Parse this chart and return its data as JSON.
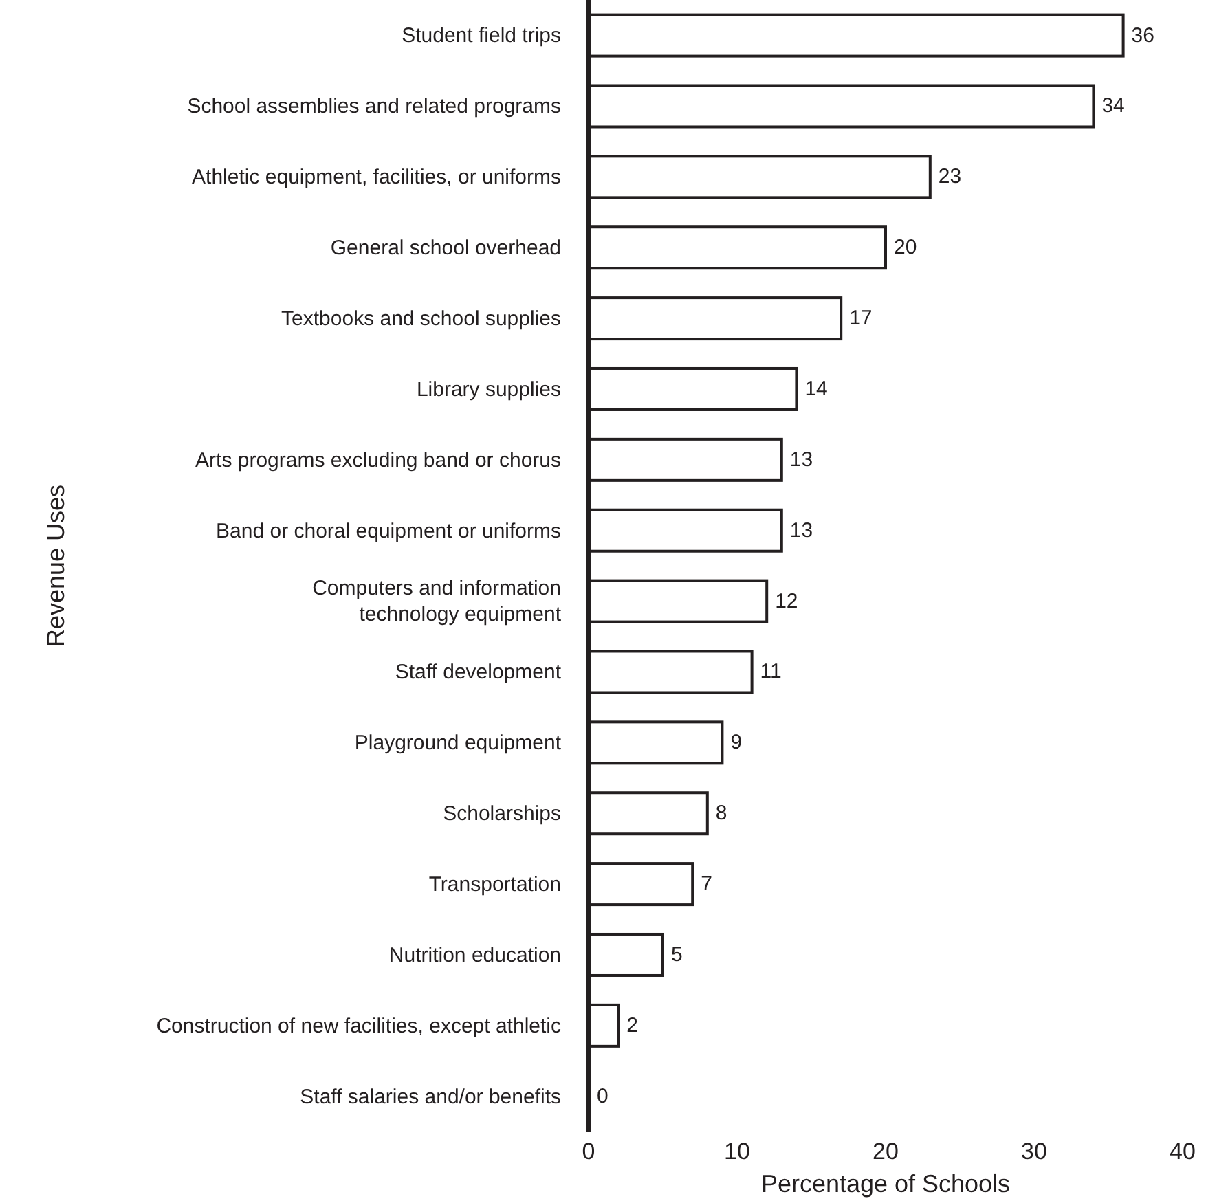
{
  "chart_data": {
    "type": "bar",
    "orientation": "horizontal",
    "xlabel": "Percentage of Schools",
    "ylabel": "Revenue Uses",
    "categories": [
      "Student field trips",
      "School assemblies and related programs",
      "Athletic equipment, facilities, or uniforms",
      "General school overhead",
      "Textbooks and school supplies",
      "Library supplies",
      "Arts programs excluding band or chorus",
      "Band or choral equipment or uniforms",
      "Computers and information\ntechnology equipment",
      "Staff development",
      "Playground equipment",
      "Scholarships",
      "Transportation",
      "Nutrition education",
      "Construction of new facilities, except athletic",
      "Staff salaries and/or benefits"
    ],
    "values": [
      36,
      34,
      23,
      20,
      17,
      14,
      13,
      13,
      12,
      11,
      9,
      8,
      7,
      5,
      2,
      0
    ],
    "color": "#ffffff",
    "xlim": [
      0,
      40
    ],
    "xticks": [
      0,
      10,
      20,
      30,
      40
    ],
    "data_labels": true,
    "grid": false,
    "legend": false
  }
}
